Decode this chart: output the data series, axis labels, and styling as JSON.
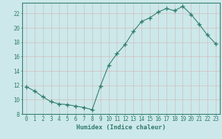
{
  "x": [
    0,
    1,
    2,
    3,
    4,
    5,
    6,
    7,
    8,
    9,
    10,
    11,
    12,
    13,
    14,
    15,
    16,
    17,
    18,
    19,
    20,
    21,
    22,
    23
  ],
  "y": [
    11.8,
    11.2,
    10.4,
    9.7,
    9.4,
    9.3,
    9.1,
    8.9,
    8.6,
    11.9,
    14.8,
    16.4,
    17.7,
    19.5,
    20.9,
    21.4,
    22.2,
    22.7,
    22.4,
    23.0,
    21.9,
    20.5,
    19.0,
    17.8
  ],
  "line_color": "#2d7a6a",
  "marker": "+",
  "marker_size": 4,
  "bg_color": "#cce8ea",
  "grid_color": "#b8d8d8",
  "tick_color": "#2d7a6a",
  "xlabel": "Humidex (Indice chaleur)",
  "xlim": [
    -0.5,
    23.5
  ],
  "ylim": [
    8,
    23.5
  ],
  "yticks": [
    8,
    10,
    12,
    14,
    16,
    18,
    20,
    22
  ],
  "xticks": [
    0,
    1,
    2,
    3,
    4,
    5,
    6,
    7,
    8,
    9,
    10,
    11,
    12,
    13,
    14,
    15,
    16,
    17,
    18,
    19,
    20,
    21,
    22,
    23
  ],
  "xtick_labels": [
    "0",
    "1",
    "2",
    "3",
    "4",
    "5",
    "6",
    "7",
    "8",
    "9",
    "10",
    "11",
    "12",
    "13",
    "14",
    "15",
    "16",
    "17",
    "18",
    "19",
    "20",
    "21",
    "22",
    "23"
  ],
  "label_fontsize": 6.5,
  "tick_fontsize": 5.5
}
